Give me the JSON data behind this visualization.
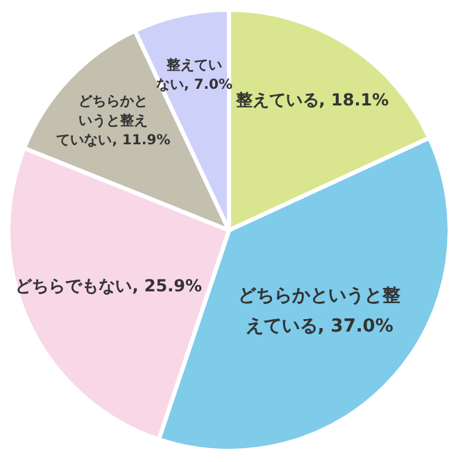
{
  "chart_data": {
    "type": "pie",
    "categories": [
      "整えている",
      "どちらかというと整えている",
      "どちらでもない",
      "どちらかというと整えていない",
      "整えていない"
    ],
    "values": [
      18.1,
      37.0,
      25.9,
      11.9,
      7.0
    ],
    "value_labels": [
      "18.1%",
      "37.0%",
      "25.9%",
      "11.9%",
      "7.0%"
    ],
    "colors": [
      "#d9e68f",
      "#7fcbea",
      "#f8d8e6",
      "#c3c0af",
      "#cdd0f8"
    ]
  }
}
